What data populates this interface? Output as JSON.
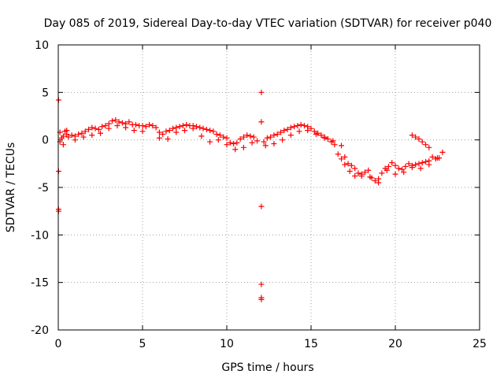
{
  "chart_data": {
    "type": "scatter",
    "title": "Day 085 of 2019, Sidereal Day-to-day VTEC variation (SDTVAR) for receiver p040",
    "xlabel": "GPS time / hours",
    "ylabel": "SDTVAR / TECUs",
    "xlim": [
      0,
      25
    ],
    "ylim": [
      -20,
      10
    ],
    "grid": true,
    "marker": "+",
    "marker_color": "#ff0000",
    "x_ticks": [
      0,
      5,
      10,
      15,
      20,
      25
    ],
    "y_ticks": [
      10,
      5,
      0,
      -5,
      -10,
      -15,
      -20
    ],
    "x_tick_labels": [
      "0",
      "5",
      "10",
      "15",
      "20",
      "25"
    ],
    "y_tick_labels": [
      "10",
      "5",
      "0",
      "-5",
      "-10",
      "-15",
      "-20"
    ],
    "series": [
      {
        "name": "SDTVAR",
        "x": [
          0.02,
          0.02,
          0.02,
          0.02,
          0.1,
          0.2,
          0.3,
          0.4,
          0.5,
          0.6,
          0.8,
          1.0,
          1.2,
          1.4,
          1.6,
          1.8,
          2.0,
          2.2,
          2.4,
          2.6,
          2.8,
          3.0,
          3.2,
          3.4,
          3.6,
          3.8,
          4.0,
          4.2,
          4.4,
          4.6,
          4.8,
          5.0,
          5.2,
          5.4,
          5.6,
          5.8,
          6.0,
          6.2,
          6.4,
          6.6,
          6.8,
          7.0,
          7.2,
          7.4,
          7.6,
          7.8,
          8.0,
          8.2,
          8.4,
          8.6,
          8.8,
          9.0,
          9.2,
          9.4,
          9.6,
          9.8,
          10.0,
          10.2,
          10.4,
          10.6,
          10.8,
          11.0,
          11.2,
          11.4,
          11.6,
          11.8,
          12.05,
          12.05,
          12.05,
          12.05,
          12.05,
          12.05,
          12.2,
          12.4,
          12.6,
          12.8,
          13.0,
          13.2,
          13.4,
          13.6,
          13.8,
          14.0,
          14.2,
          14.4,
          14.6,
          14.8,
          15.0,
          15.2,
          15.4,
          15.6,
          15.8,
          16.0,
          16.2,
          16.4,
          16.6,
          16.8,
          17.0,
          17.2,
          17.4,
          17.6,
          17.8,
          18.0,
          18.2,
          18.4,
          18.6,
          18.8,
          19.0,
          19.2,
          19.4,
          19.6,
          19.8,
          20.0,
          20.2,
          20.4,
          20.6,
          20.8,
          21.0,
          21.2,
          21.4,
          21.6,
          21.8,
          22.0,
          22.2,
          22.4,
          22.6,
          22.8,
          21.0,
          21.2,
          21.4,
          21.6,
          21.8,
          22.0,
          0.1,
          0.3,
          0.5,
          1.0,
          1.5,
          2.0,
          2.5,
          3.0,
          3.5,
          4.0,
          4.5,
          5.0,
          6.0,
          6.5,
          7.0,
          7.5,
          8.0,
          8.5,
          9.0,
          9.5,
          10.0,
          10.5,
          11.0,
          11.5,
          12.3,
          12.8,
          13.3,
          13.8,
          14.3,
          14.8,
          15.3,
          15.8,
          16.3,
          16.8,
          17.0,
          17.3,
          17.6,
          18.0,
          18.5,
          19.0,
          19.5,
          20.0,
          20.5,
          21.0,
          21.5,
          22.0,
          22.5
        ],
        "y": [
          4.2,
          -3.3,
          -7.3,
          -7.5,
          0.8,
          0.2,
          -0.5,
          0.9,
          0.6,
          0.3,
          0.5,
          0.4,
          0.6,
          0.7,
          0.9,
          1.1,
          1.3,
          1.2,
          1.1,
          1.4,
          1.5,
          1.7,
          2.0,
          2.1,
          1.9,
          1.8,
          1.7,
          1.9,
          1.6,
          1.6,
          1.5,
          1.5,
          1.4,
          1.6,
          1.5,
          1.3,
          0.8,
          0.6,
          0.9,
          1.0,
          1.2,
          1.3,
          1.4,
          1.5,
          1.6,
          1.5,
          1.5,
          1.4,
          1.3,
          1.2,
          1.1,
          1.0,
          0.9,
          0.6,
          0.5,
          0.3,
          0.2,
          -0.3,
          -0.4,
          -0.3,
          0.1,
          0.3,
          0.5,
          0.4,
          0.3,
          -0.1,
          5.0,
          1.9,
          -7.0,
          -15.2,
          -16.6,
          -16.8,
          -0.2,
          0.2,
          0.3,
          0.5,
          0.6,
          0.8,
          1.0,
          1.1,
          1.3,
          1.4,
          1.5,
          1.6,
          1.5,
          1.4,
          1.2,
          0.9,
          0.7,
          0.5,
          0.3,
          0.1,
          -0.2,
          -0.5,
          -1.5,
          -2.0,
          -1.8,
          -2.5,
          -2.7,
          -3.0,
          -3.5,
          -3.8,
          -3.4,
          -3.2,
          -4.0,
          -4.3,
          -4.1,
          -3.5,
          -3.0,
          -2.8,
          -2.4,
          -2.7,
          -3.0,
          -3.1,
          -2.8,
          -2.5,
          -2.7,
          -2.6,
          -2.5,
          -2.4,
          -2.3,
          -2.2,
          -1.8,
          -2.0,
          -1.9,
          -1.3,
          0.5,
          0.3,
          0.1,
          -0.2,
          -0.5,
          -0.8,
          -0.2,
          0.4,
          1.0,
          0.0,
          0.3,
          0.5,
          0.7,
          1.2,
          1.5,
          1.3,
          1.0,
          0.9,
          0.2,
          0.1,
          0.8,
          1.0,
          1.2,
          0.4,
          -0.2,
          0.0,
          -0.5,
          -1.0,
          -0.8,
          -0.3,
          -0.6,
          -0.4,
          0.0,
          0.5,
          0.9,
          1.0,
          0.6,
          0.2,
          -0.1,
          -0.6,
          -2.6,
          -3.3,
          -3.8,
          -3.6,
          -3.9,
          -4.5,
          -3.2,
          -3.6,
          -3.4,
          -2.9,
          -3.0,
          -2.6,
          -1.9
        ]
      }
    ]
  }
}
